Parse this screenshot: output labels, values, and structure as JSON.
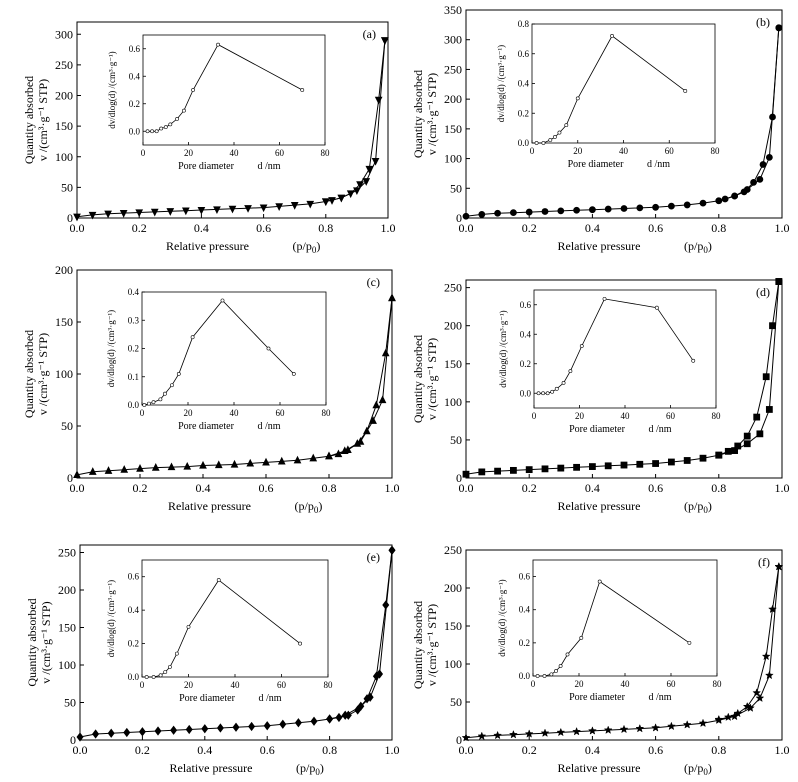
{
  "common": {
    "xlabel_main": "Relative pressure",
    "xlabel_main_var": "(p/p",
    "xlabel_main_sub": "0",
    "xlabel_main_close": ")",
    "ylabel_main": "Quantity absorbed",
    "ylabel_main_unit": "v /(cm³·g⁻¹ STP)",
    "inset_xlabel": "Pore diameter",
    "inset_xlabel_unit": "d /nm",
    "inset_ylabel": "dv/dlog(d) /(cm³·g⁻¹)"
  },
  "chart_data": [
    {
      "panel": "(a)",
      "type": "line",
      "marker": "triangle-down",
      "xlim": [
        0,
        1.0
      ],
      "ylim": [
        0,
        320
      ],
      "xticks": [
        0.0,
        0.2,
        0.4,
        0.6,
        0.8,
        1.0
      ],
      "yticks": [
        0,
        50,
        100,
        150,
        200,
        250,
        300
      ],
      "series": [
        {
          "x": [
            0.0,
            0.05,
            0.1,
            0.15,
            0.2,
            0.25,
            0.3,
            0.35,
            0.4,
            0.45,
            0.5,
            0.55,
            0.6,
            0.65,
            0.7,
            0.75,
            0.8,
            0.85,
            0.9,
            0.93,
            0.96,
            0.99
          ],
          "y": [
            2,
            5,
            7,
            8,
            9,
            10,
            11,
            12,
            13,
            14,
            15,
            16,
            17,
            19,
            21,
            23,
            27,
            33,
            45,
            60,
            93,
            290
          ]
        },
        {
          "x": [
            0.99,
            0.97,
            0.94,
            0.91,
            0.88,
            0.85,
            0.82,
            0.8
          ],
          "y": [
            290,
            193,
            80,
            55,
            40,
            33,
            29,
            27
          ]
        }
      ],
      "inset": {
        "xlim": [
          0,
          80
        ],
        "ylim": [
          -0.1,
          0.7
        ],
        "xticks": [
          0,
          20,
          40,
          60,
          80
        ],
        "yticks": [
          0.0,
          0.2,
          0.4,
          0.6
        ],
        "x": [
          2,
          4,
          6,
          8,
          10,
          12,
          15,
          18,
          22,
          33,
          70
        ],
        "y": [
          0.0,
          0.0,
          0.0,
          0.02,
          0.03,
          0.05,
          0.09,
          0.15,
          0.3,
          0.63,
          0.3
        ]
      }
    },
    {
      "panel": "(b)",
      "type": "line",
      "marker": "circle",
      "xlim": [
        0,
        1.0
      ],
      "ylim": [
        0,
        350
      ],
      "xticks": [
        0.0,
        0.2,
        0.4,
        0.6,
        0.8,
        1.0
      ],
      "yticks": [
        0,
        50,
        100,
        150,
        200,
        250,
        300,
        350
      ],
      "series": [
        {
          "x": [
            0.0,
            0.05,
            0.1,
            0.15,
            0.2,
            0.25,
            0.3,
            0.35,
            0.4,
            0.45,
            0.5,
            0.55,
            0.6,
            0.65,
            0.7,
            0.75,
            0.8,
            0.85,
            0.89,
            0.93,
            0.96,
            0.99
          ],
          "y": [
            3,
            6,
            8,
            9,
            10,
            11,
            12,
            13,
            14,
            15,
            16,
            17,
            18,
            20,
            22,
            25,
            29,
            37,
            48,
            65,
            102,
            320
          ]
        },
        {
          "x": [
            0.99,
            0.97,
            0.94,
            0.91,
            0.88,
            0.85,
            0.82,
            0.8
          ],
          "y": [
            320,
            170,
            90,
            60,
            44,
            37,
            32,
            29
          ]
        }
      ],
      "inset": {
        "xlim": [
          0,
          80
        ],
        "ylim": [
          0,
          0.8
        ],
        "xticks": [
          0,
          20,
          40,
          60,
          80
        ],
        "yticks": [
          0.0,
          0.2,
          0.4,
          0.6,
          0.8
        ],
        "x": [
          2,
          5,
          8,
          10,
          12,
          15,
          20,
          35,
          67
        ],
        "y": [
          0.0,
          0.0,
          0.02,
          0.04,
          0.07,
          0.12,
          0.3,
          0.72,
          0.35
        ]
      }
    },
    {
      "panel": "(c)",
      "type": "line",
      "marker": "triangle-up",
      "xlim": [
        0,
        1.0
      ],
      "ylim": [
        0,
        200
      ],
      "xticks": [
        0.0,
        0.2,
        0.4,
        0.6,
        0.8,
        1.0
      ],
      "yticks": [
        0,
        50,
        100,
        150,
        200
      ],
      "series": [
        {
          "x": [
            0.0,
            0.05,
            0.1,
            0.15,
            0.2,
            0.25,
            0.3,
            0.35,
            0.4,
            0.45,
            0.5,
            0.55,
            0.6,
            0.65,
            0.7,
            0.75,
            0.8,
            0.85,
            0.9,
            0.94,
            0.97,
            1.0
          ],
          "y": [
            3,
            6,
            7,
            8,
            9,
            10,
            10.5,
            11,
            12,
            12.5,
            13,
            14,
            15,
            16,
            17,
            19,
            21,
            26,
            35,
            55,
            75,
            173
          ]
        },
        {
          "x": [
            1.0,
            0.98,
            0.95,
            0.92,
            0.89,
            0.86,
            0.83,
            0.8
          ],
          "y": [
            173,
            120,
            70,
            45,
            33,
            27,
            23,
            21
          ]
        }
      ],
      "inset": {
        "xlim": [
          0,
          80
        ],
        "ylim": [
          0,
          0.4
        ],
        "xticks": [
          0,
          20,
          40,
          60,
          80
        ],
        "yticks": [
          0.0,
          0.1,
          0.2,
          0.3,
          0.4
        ],
        "x": [
          1,
          3,
          5,
          8,
          10,
          13,
          16,
          22,
          35,
          55,
          66
        ],
        "y": [
          0.0,
          0.005,
          0.01,
          0.02,
          0.04,
          0.07,
          0.11,
          0.24,
          0.37,
          0.2,
          0.11
        ]
      }
    },
    {
      "panel": "(d)",
      "type": "line",
      "marker": "square",
      "xlim": [
        0,
        1.0
      ],
      "ylim": [
        0,
        260
      ],
      "xticks": [
        0.0,
        0.2,
        0.4,
        0.6,
        0.8,
        1.0
      ],
      "yticks": [
        0,
        50,
        100,
        150,
        200,
        250
      ],
      "series": [
        {
          "x": [
            0.0,
            0.05,
            0.1,
            0.15,
            0.2,
            0.25,
            0.3,
            0.35,
            0.4,
            0.45,
            0.5,
            0.55,
            0.6,
            0.65,
            0.7,
            0.75,
            0.8,
            0.85,
            0.89,
            0.93,
            0.96,
            0.99
          ],
          "y": [
            5,
            8,
            9,
            10,
            11,
            12,
            13,
            14,
            15,
            16,
            17,
            18,
            19,
            21,
            23,
            26,
            30,
            36,
            45,
            58,
            90,
            258
          ]
        },
        {
          "x": [
            0.99,
            0.97,
            0.95,
            0.92,
            0.89,
            0.86,
            0.83,
            0.8
          ],
          "y": [
            258,
            200,
            133,
            80,
            55,
            42,
            35,
            30
          ]
        }
      ],
      "inset": {
        "xlim": [
          0,
          80
        ],
        "ylim": [
          -0.1,
          0.7
        ],
        "xticks": [
          0,
          20,
          40,
          60,
          80
        ],
        "yticks": [
          0.0,
          0.2,
          0.4,
          0.6
        ],
        "x": [
          2,
          4,
          6,
          8,
          10,
          13,
          16,
          21,
          31,
          54,
          70
        ],
        "y": [
          0.0,
          0.0,
          0.0,
          0.01,
          0.03,
          0.07,
          0.15,
          0.32,
          0.64,
          0.58,
          0.22
        ]
      }
    },
    {
      "panel": "(e)",
      "type": "line",
      "marker": "diamond",
      "xlim": [
        0,
        1.0
      ],
      "ylim": [
        0,
        260
      ],
      "xticks": [
        0.0,
        0.2,
        0.4,
        0.6,
        0.8,
        1.0
      ],
      "yticks": [
        0,
        50,
        100,
        150,
        200,
        250
      ],
      "series": [
        {
          "x": [
            0.0,
            0.05,
            0.1,
            0.15,
            0.2,
            0.25,
            0.3,
            0.35,
            0.4,
            0.45,
            0.5,
            0.55,
            0.6,
            0.65,
            0.7,
            0.75,
            0.8,
            0.85,
            0.9,
            0.93,
            0.96,
            1.0
          ],
          "y": [
            4,
            8,
            9,
            10,
            11,
            12,
            13,
            14,
            15,
            16,
            17,
            18,
            19,
            21,
            23,
            25,
            28,
            33,
            45,
            57,
            88,
            253
          ]
        },
        {
          "x": [
            1.0,
            0.98,
            0.95,
            0.92,
            0.89,
            0.86,
            0.83,
            0.8
          ],
          "y": [
            253,
            180,
            85,
            55,
            40,
            33,
            30,
            28
          ]
        }
      ],
      "inset": {
        "xlim": [
          0,
          80
        ],
        "ylim": [
          0,
          0.7
        ],
        "xticks": [
          0,
          20,
          40,
          60,
          80
        ],
        "yticks": [
          0.0,
          0.2,
          0.4,
          0.6
        ],
        "x": [
          2,
          5,
          8,
          10,
          12,
          15,
          20,
          33,
          68
        ],
        "y": [
          0.0,
          0.0,
          0.01,
          0.03,
          0.06,
          0.14,
          0.3,
          0.58,
          0.2
        ]
      }
    },
    {
      "panel": "(f)",
      "type": "line",
      "marker": "star",
      "xlim": [
        0,
        1.0
      ],
      "ylim": [
        0,
        250
      ],
      "xticks": [
        0.0,
        0.2,
        0.4,
        0.6,
        0.8,
        1.0
      ],
      "yticks": [
        0,
        50,
        100,
        150,
        200,
        250
      ],
      "series": [
        {
          "x": [
            0.0,
            0.05,
            0.1,
            0.15,
            0.2,
            0.25,
            0.3,
            0.35,
            0.4,
            0.45,
            0.5,
            0.55,
            0.6,
            0.65,
            0.7,
            0.75,
            0.8,
            0.85,
            0.9,
            0.93,
            0.96,
            0.99
          ],
          "y": [
            3,
            5,
            6,
            7,
            8,
            9,
            10,
            11,
            12,
            13,
            14,
            15,
            16,
            18,
            20,
            22,
            26,
            31,
            42,
            55,
            85,
            228
          ]
        },
        {
          "x": [
            0.99,
            0.97,
            0.95,
            0.92,
            0.89,
            0.86,
            0.83,
            0.8
          ],
          "y": [
            228,
            172,
            110,
            62,
            44,
            35,
            30,
            27
          ]
        }
      ],
      "inset": {
        "xlim": [
          0,
          80
        ],
        "ylim": [
          0,
          0.7
        ],
        "xticks": [
          0,
          20,
          40,
          60,
          80
        ],
        "yticks": [
          0.0,
          0.2,
          0.4,
          0.6
        ],
        "x": [
          2,
          5,
          8,
          10,
          12,
          15,
          21,
          29,
          68
        ],
        "y": [
          0.0,
          0.0,
          0.01,
          0.03,
          0.06,
          0.13,
          0.23,
          0.57,
          0.2
        ]
      }
    }
  ]
}
